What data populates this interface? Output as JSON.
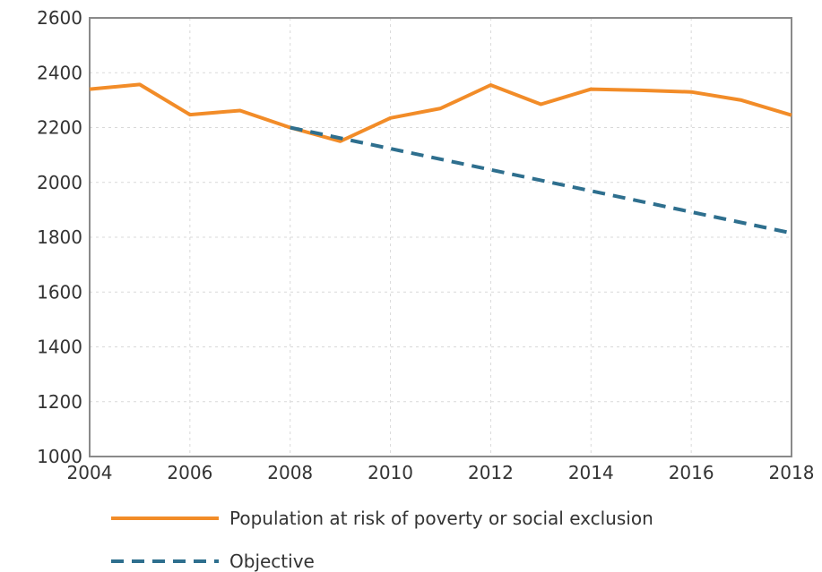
{
  "chart_data": {
    "type": "line",
    "title": "",
    "xlabel": "",
    "ylabel": "",
    "xlim": [
      2004,
      2018
    ],
    "ylim": [
      1000,
      2600
    ],
    "x_ticks": [
      "2004",
      "2006",
      "2008",
      "2010",
      "2012",
      "2014",
      "2016",
      "2018"
    ],
    "y_ticks": [
      "1000",
      "1200",
      "1400",
      "1600",
      "1800",
      "2000",
      "2200",
      "2400",
      "2600"
    ],
    "grid": true,
    "legend_position": "bottom",
    "series": [
      {
        "name": "Population at risk of poverty or social exclusion",
        "color": "#f28c28",
        "style": "solid",
        "x": [
          2004,
          2005,
          2006,
          2007,
          2008,
          2009,
          2010,
          2011,
          2012,
          2013,
          2014,
          2015,
          2016,
          2017,
          2018
        ],
        "values": [
          2340,
          2357,
          2247,
          2262,
          2200,
          2150,
          2235,
          2270,
          2355,
          2285,
          2340,
          2336,
          2330,
          2300,
          2245
        ]
      },
      {
        "name": "Objective",
        "color": "#2e6f8e",
        "style": "dashed",
        "x": [
          2008,
          2018
        ],
        "values": [
          2200,
          1815
        ]
      }
    ]
  }
}
